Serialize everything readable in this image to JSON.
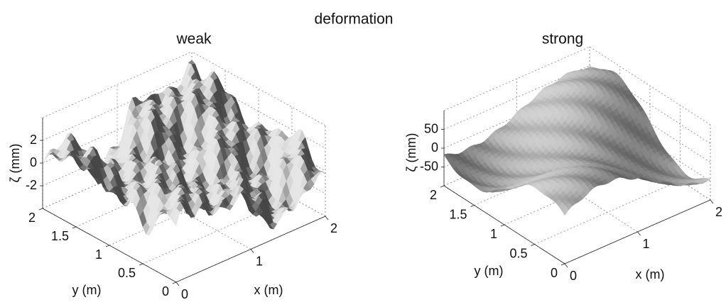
{
  "title": "deformation",
  "chart_data": [
    {
      "type": "surface",
      "title": "weak",
      "xlabel": "x (m)",
      "ylabel": "y (m)",
      "zlabel": "ζ (mm)",
      "xlim": [
        0,
        2
      ],
      "ylim": [
        0,
        2
      ],
      "zlim": [
        -4,
        4
      ],
      "xticks": [
        0,
        1,
        2
      ],
      "yticks": [
        0,
        0.5,
        1,
        1.5,
        2
      ],
      "zticks": [
        -2,
        0,
        2
      ],
      "grid": true
    },
    {
      "type": "surface",
      "title": "strong",
      "xlabel": "x (m)",
      "ylabel": "y (m)",
      "zlabel": "ζ (mm)",
      "xlim": [
        0,
        2
      ],
      "ylim": [
        0,
        2
      ],
      "zlim": [
        -100,
        100
      ],
      "xticks": [
        0,
        1,
        2
      ],
      "yticks": [
        0,
        0.5,
        1,
        1.5,
        2
      ],
      "zticks": [
        -50,
        0,
        50
      ],
      "grid": true
    }
  ]
}
